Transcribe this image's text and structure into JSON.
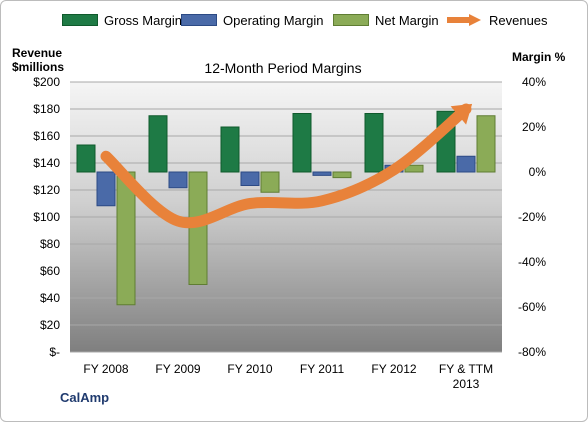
{
  "legend": {
    "gross": "Gross Margin",
    "operating": "Operating Margin",
    "net": "Net Margin",
    "revenues": "Revenues"
  },
  "axis": {
    "left_title_line1": "Revenue",
    "left_title_line2": "$millions",
    "right_title": "Margin %"
  },
  "company": "CalAmp",
  "colors": {
    "gross": "#1e7a45",
    "operating": "#4a6aa8",
    "net": "#8bab57",
    "revenues": "#e8823a"
  },
  "chart_data": {
    "type": "bar",
    "title": "12-Month Period Margins",
    "categories": [
      "FY 2008",
      "FY 2009",
      "FY 2010",
      "FY 2011",
      "FY 2012",
      "FY & TTM 2013"
    ],
    "left_axis": {
      "ylim": [
        0,
        200
      ],
      "ticks": [
        "$-",
        "$20",
        "$40",
        "$60",
        "$80",
        "$100",
        "$120",
        "$140",
        "$160",
        "$180",
        "$200"
      ]
    },
    "right_axis": {
      "ylim": [
        -80,
        40
      ],
      "ticks": [
        "-80%",
        "-60%",
        "-40%",
        "-20%",
        "0%",
        "20%",
        "40%"
      ]
    },
    "series": [
      {
        "name": "Gross Margin",
        "axis": "right",
        "type": "bar",
        "values": [
          12,
          25,
          20,
          26,
          26,
          27
        ]
      },
      {
        "name": "Operating Margin",
        "axis": "right",
        "type": "bar",
        "values": [
          -15,
          -7,
          -6,
          -1.5,
          3,
          7
        ]
      },
      {
        "name": "Net Margin",
        "axis": "right",
        "type": "bar",
        "values": [
          -59,
          -50,
          -9,
          -2.5,
          3,
          25
        ]
      },
      {
        "name": "Revenues",
        "axis": "left",
        "type": "line",
        "values": [
          145,
          97,
          110,
          112,
          135,
          180
        ]
      }
    ]
  }
}
